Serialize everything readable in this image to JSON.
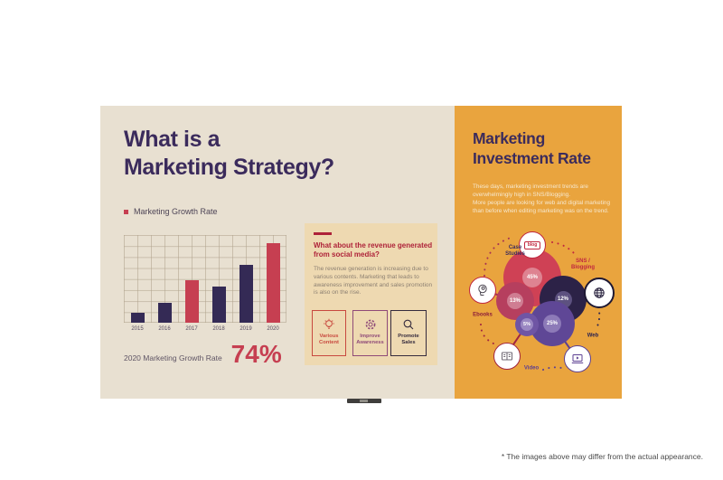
{
  "page": {
    "caption": "* The images above may differ from the actual appearance."
  },
  "colors": {
    "slide_background": "#e8e0d1",
    "panel_orange": "#e9a43e",
    "headline_purple": "#3b2b5c",
    "accent_red": "#c63f51",
    "bar_purple": "#342a55",
    "card_background": "#eed9b1",
    "card_red": "#ae2239"
  },
  "slide": {
    "left": {
      "title": "What is a\nMarketing Strategy?",
      "legend": "Marketing Growth Rate",
      "growth_label": "2020 Marketing Growth Rate",
      "growth_value": "74%"
    },
    "card": {
      "heading": "What about the revenue generated from social media?",
      "body": "The revenue generation is increasing due to various contents. Marketing that leads to awareness improvement and sales promotion is also on the rise.",
      "boxes": [
        {
          "label": "Various\nContent",
          "icon": "lightbulb-icon",
          "color": "#c8493f"
        },
        {
          "label": "Improve\nAwareness",
          "icon": "gear-icon",
          "color": "#8f4a78"
        },
        {
          "label": "Promote\nSales",
          "icon": "magnifier-icon",
          "color": "#352b3d"
        }
      ]
    },
    "right": {
      "title": "Marketing\nInvestment Rate",
      "body": "These days, marketing investment trends are\noverwhelmingly high in SNS/Blogging.\nMore people are looking for web and digital marketing\nthan before when editing marketing was on the trend.",
      "blog_badge": "blog"
    }
  },
  "chart_data": [
    {
      "type": "bar",
      "title": "Marketing Growth Rate",
      "categories": [
        "2015",
        "2016",
        "2017",
        "2018",
        "2019",
        "2020"
      ],
      "values": [
        9,
        19,
        40,
        34,
        54,
        74
      ],
      "unit": "%",
      "ylim": [
        0,
        82
      ],
      "grid": true,
      "bar_colors": [
        "#342a55",
        "#342a55",
        "#c63f51",
        "#342a55",
        "#342a55",
        "#c63f51"
      ],
      "highlight_stat": {
        "label": "2020 Marketing Growth Rate",
        "value": "74%"
      }
    },
    {
      "type": "bubble",
      "title": "Marketing Investment Rate",
      "segments": [
        {
          "label": "SNS /\nBlogging",
          "value": 45,
          "value_label": "45%",
          "color": "#cf4155",
          "icon": "blog-icon"
        },
        {
          "label": "Case\nStudies",
          "value": 13,
          "value_label": "13%",
          "color": "#b63f5e",
          "icon": "idea-head-icon"
        },
        {
          "label": "Web",
          "value": 12,
          "value_label": "12%",
          "color": "#2c2247",
          "icon": "globe-icon"
        },
        {
          "label": "Video",
          "value": 25,
          "value_label": "25%",
          "color": "#5f4796",
          "icon": "video-player-icon"
        },
        {
          "label": "Ebooks",
          "value": 5,
          "value_label": "5%",
          "color": "#6f55a4",
          "icon": "ebook-icon"
        }
      ]
    }
  ]
}
